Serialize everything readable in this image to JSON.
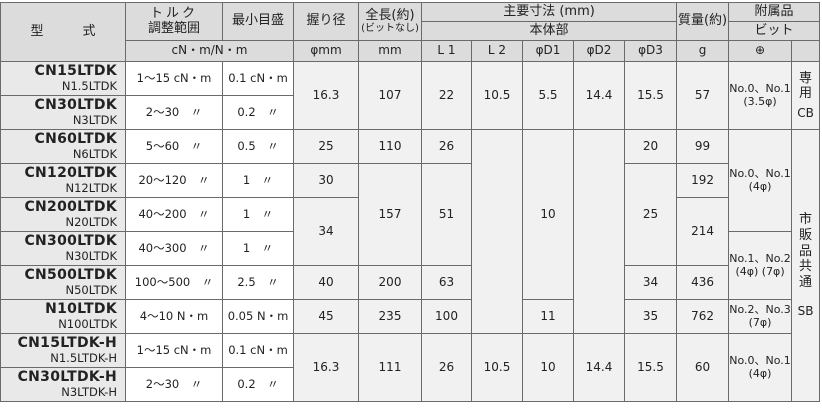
{
  "header": {
    "model": "型　　　式",
    "torque_range": [
      "トルク",
      "調整範囲"
    ],
    "min_scale": "最小目盛",
    "grip_dia": "握り径",
    "length": "全長(約)",
    "length_note": "(ビットなし)",
    "main_dims": "主要寸法 (mm)",
    "body": "本体部",
    "mass": "質量(約)",
    "accessory": "附属品",
    "bit": "ビット",
    "unit_torque": "cN・m/N・m",
    "unit_grip": "φmm",
    "unit_length": "mm",
    "L1": "L 1",
    "L2": "L 2",
    "D1": "φD1",
    "D2": "φD2",
    "D3": "φD3",
    "unit_mass": "g",
    "bit_type": "⊕"
  },
  "rows": [
    {
      "model": "CN15LTDK",
      "sub": "N1.5LTDK",
      "torque": "1～15 cN・m",
      "min": "0.1 cN・m"
    },
    {
      "model": "CN30LTDK",
      "sub": "N3LTDK",
      "torque": "2～30　〃",
      "min": "0.2　〃"
    },
    {
      "model": "CN60LTDK",
      "sub": "N6LTDK",
      "torque": "5～60　〃",
      "min": "0.5　〃"
    },
    {
      "model": "CN120LTDK",
      "sub": "N12LTDK",
      "torque": "20～120　〃",
      "min": "1　〃"
    },
    {
      "model": "CN200LTDK",
      "sub": "N20LTDK",
      "torque": "40～200　〃",
      "min": "1　〃"
    },
    {
      "model": "CN300LTDK",
      "sub": "N30LTDK",
      "torque": "40～300　〃",
      "min": "1　〃"
    },
    {
      "model": "CN500LTDK",
      "sub": "N50LTDK",
      "torque": "100～500　〃",
      "min": "2.5　〃"
    },
    {
      "model": "N10LTDK",
      "sub": "N100LTDK",
      "torque": "4～10 N・m",
      "min": "0.05 N・m"
    },
    {
      "model": "CN15LTDK-H",
      "sub": "N1.5LTDK-H",
      "torque": "1～15 cN・m",
      "min": "0.1 cN・m"
    },
    {
      "model": "CN30LTDK-H",
      "sub": "N3LTDK-H",
      "torque": "2～30　〃",
      "min": "0.2　〃"
    }
  ],
  "g1": {
    "grip": "16.3",
    "length": "107",
    "L1": "22",
    "L2": "10.5",
    "D1": "5.5",
    "D2": "14.4",
    "D3": "15.5",
    "mass": "57",
    "bit": "No.0、No.1",
    "bit_size": "(3.5φ)",
    "bit_kind": "専用",
    "bit_code": "CB"
  },
  "g2": {
    "grip": [
      "25",
      "30",
      "34",
      "40",
      "45"
    ],
    "length": [
      "110",
      "157",
      "200",
      "235"
    ],
    "L1": [
      "26",
      "51",
      "63",
      "100"
    ],
    "D1": [
      "10",
      "11"
    ],
    "D3": [
      "20",
      "25",
      "34",
      "35"
    ],
    "mass": [
      "99",
      "192",
      "214",
      "436",
      "762"
    ],
    "bit": [
      {
        "name": "No.0、No.1",
        "size": "(4φ)"
      },
      {
        "name": "No.1、No.2",
        "size": "(4φ) (7φ)"
      },
      {
        "name": "No.2、No.3",
        "size": "(7φ)"
      }
    ],
    "bit_kind": "市販品共通",
    "bit_code": "SB"
  },
  "g3": {
    "grip": "16.3",
    "length": "111",
    "L1": "26",
    "L2": "10.5",
    "D1": "10",
    "D2": "14.4",
    "D3": "15.5",
    "mass": "60",
    "bit": "No.0、No.1",
    "bit_size": "(4φ)"
  }
}
